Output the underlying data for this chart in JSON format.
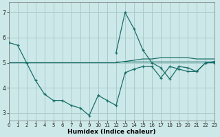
{
  "xlabel": "Humidex (Indice chaleur)",
  "bg_color": "#cce8e8",
  "grid_color": "#aacccc",
  "line_color": "#1a6e6a",
  "line1_x": [
    0,
    1,
    2,
    3,
    4,
    5,
    6,
    7,
    8,
    9,
    10,
    11,
    12,
    13,
    14,
    15,
    16,
    17,
    18,
    19,
    20,
    21,
    22,
    23
  ],
  "line1_y": [
    5.8,
    5.7,
    5.0,
    4.3,
    3.75,
    3.5,
    3.5,
    3.3,
    3.2,
    2.9,
    3.7,
    3.5,
    3.3,
    4.6,
    4.75,
    4.85,
    4.85,
    4.4,
    4.85,
    4.75,
    4.65,
    4.65,
    5.0,
    5.0
  ],
  "line2_x": [
    0,
    1,
    2,
    3,
    4,
    5,
    6,
    7,
    8,
    9,
    10,
    11,
    12,
    13,
    14,
    15,
    16,
    17,
    18,
    19,
    20,
    21,
    22,
    23
  ],
  "line2_y": [
    5.0,
    5.0,
    5.0,
    5.0,
    5.0,
    5.0,
    5.0,
    5.0,
    5.0,
    5.0,
    5.0,
    5.0,
    5.0,
    5.05,
    5.1,
    5.15,
    5.15,
    5.2,
    5.2,
    5.2,
    5.2,
    5.15,
    5.15,
    5.15
  ],
  "line3_x": [
    12,
    13,
    14,
    15,
    16,
    17,
    18,
    19,
    20,
    21,
    22,
    23
  ],
  "line3_y": [
    5.4,
    7.0,
    6.35,
    5.5,
    5.0,
    4.8,
    4.35,
    4.85,
    4.8,
    4.65,
    5.0,
    5.05
  ],
  "line4_x": [
    12,
    13,
    14,
    15,
    16,
    17,
    18,
    19,
    20,
    21,
    22,
    23
  ],
  "line4_y": [
    5.05,
    5.05,
    5.05,
    5.05,
    5.05,
    5.05,
    5.05,
    5.05,
    5.05,
    5.05,
    5.05,
    5.05
  ],
  "ylim": [
    2.7,
    7.4
  ],
  "xlim": [
    0,
    23
  ],
  "yticks": [
    3,
    4,
    5,
    6,
    7
  ],
  "xticks": [
    0,
    1,
    2,
    3,
    4,
    5,
    6,
    7,
    8,
    9,
    10,
    11,
    12,
    13,
    14,
    15,
    16,
    17,
    18,
    19,
    20,
    21,
    22,
    23
  ],
  "tick_fontsize": 5.0,
  "xlabel_fontsize": 6.5,
  "lw": 0.9,
  "ms": 3.0
}
